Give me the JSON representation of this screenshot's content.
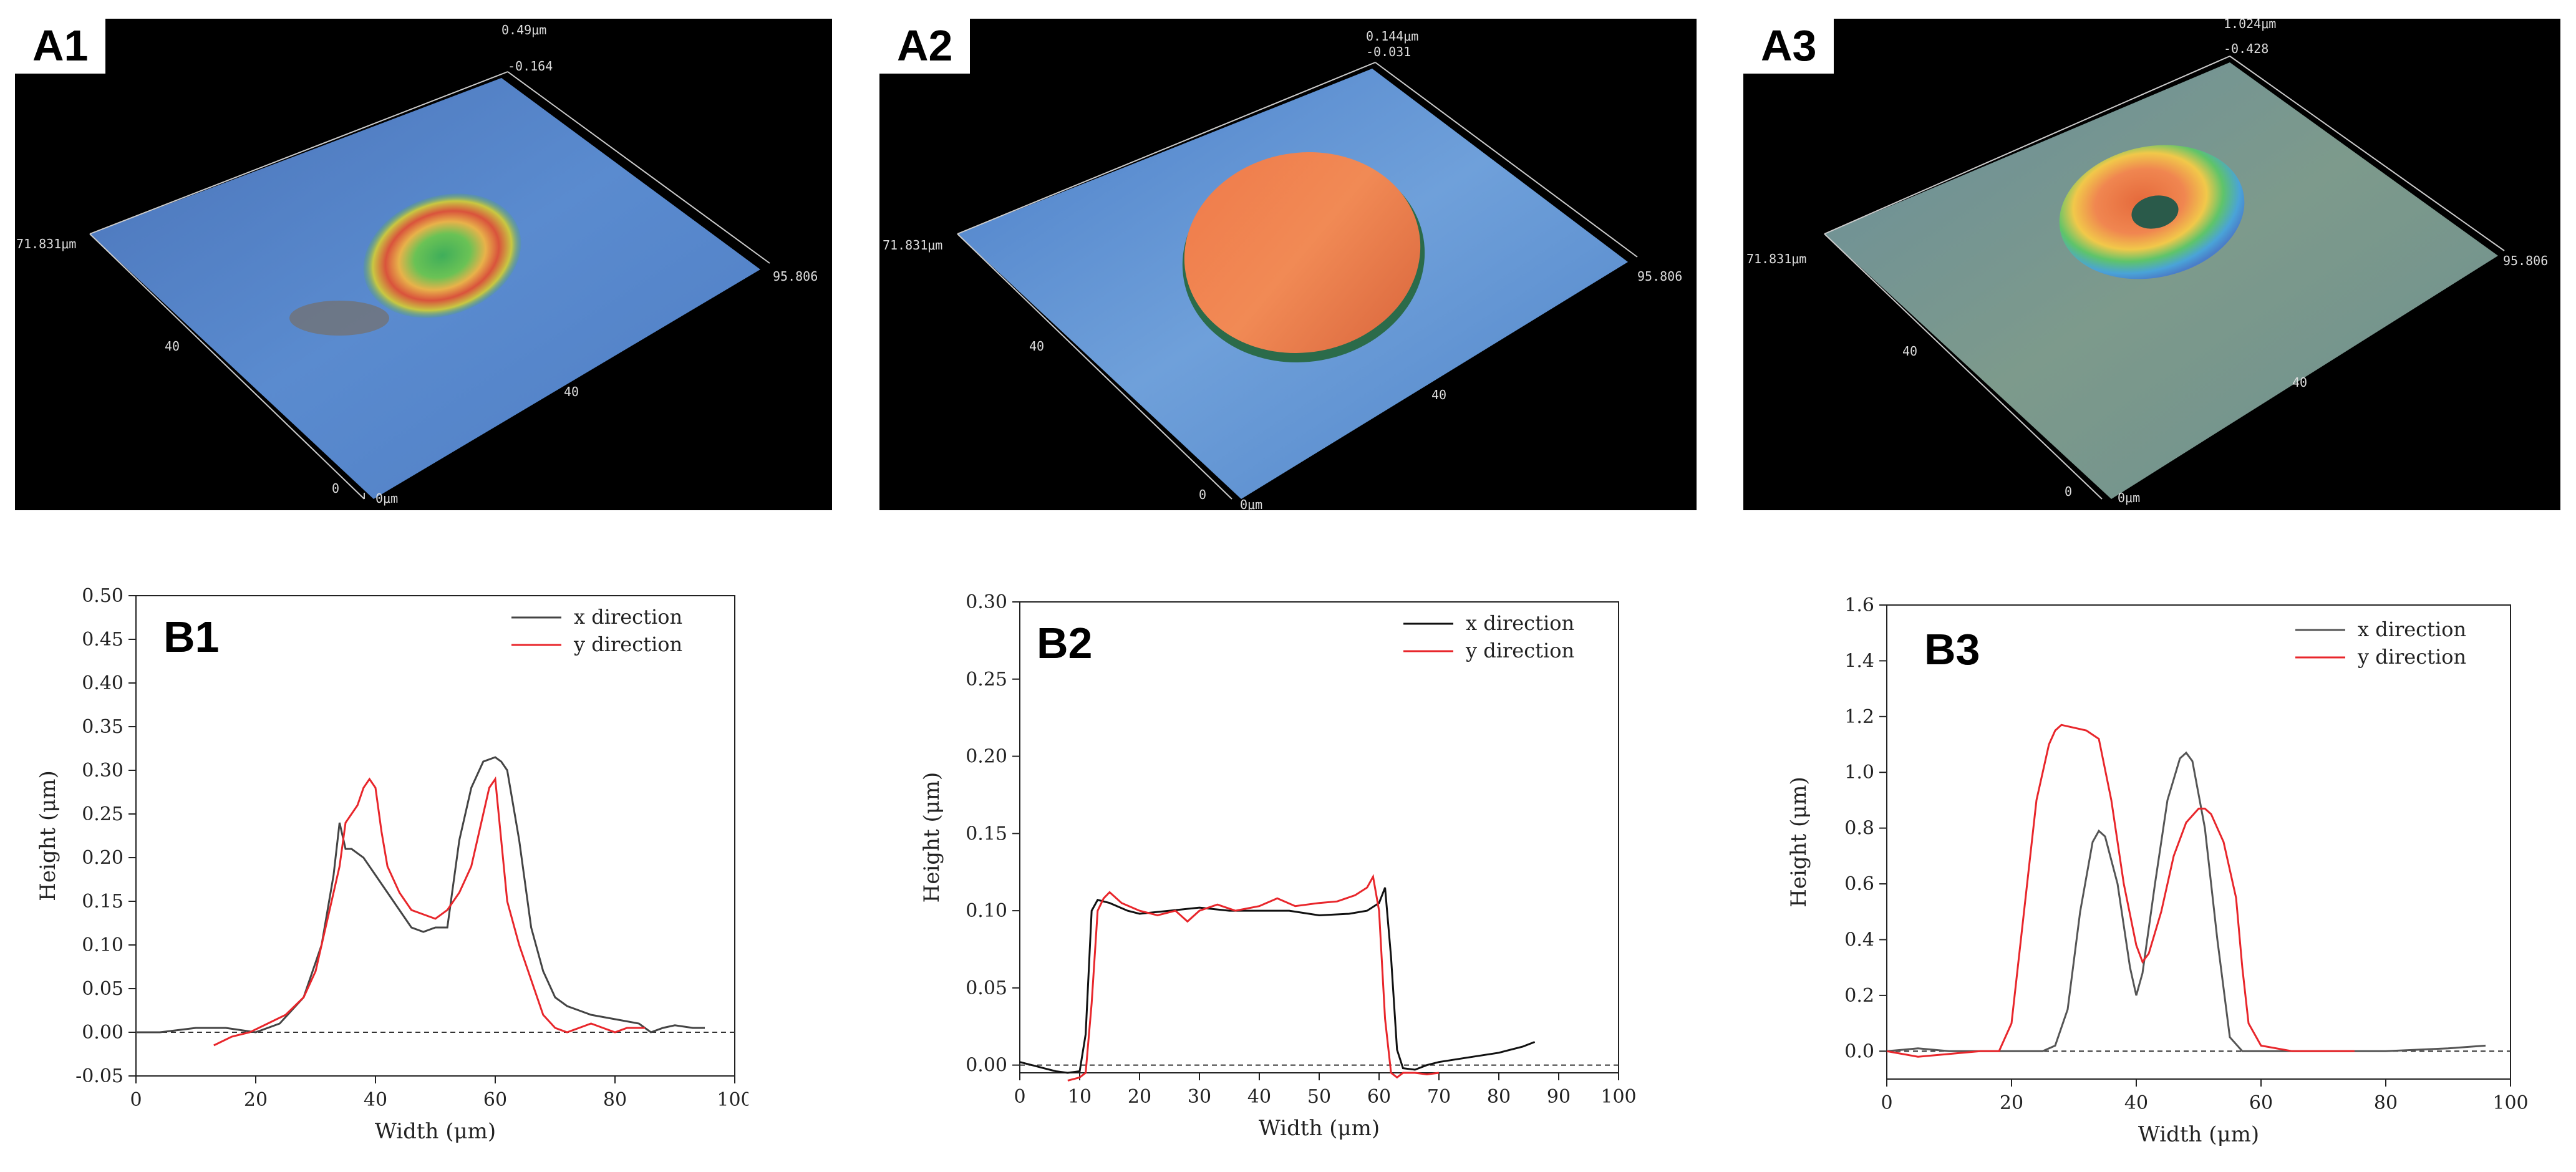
{
  "panels_3d": [
    {
      "label": "A1",
      "scale": {
        "zmax": "0.49μm",
        "zmin": "-0.164",
        "ylen": "71.831μm",
        "xlen": "95.806",
        "tick_a": "40",
        "tick_b": "40",
        "origin_z": "0",
        "origin_xy": "0μm"
      }
    },
    {
      "label": "A2",
      "scale": {
        "zmax": "0.144μm",
        "zmin": "-0.031",
        "ylen": "71.831μm",
        "xlen": "95.806",
        "tick_a": "40",
        "tick_b": "40",
        "origin_z": "0",
        "origin_xy": "0μm"
      }
    },
    {
      "label": "A3",
      "scale": {
        "zmax": "1.024μm",
        "zmin": "-0.428",
        "ylen": "71.831μm",
        "xlen": "95.806",
        "tick_a": "40",
        "tick_b": "40",
        "origin_z": "0",
        "origin_xy": "0μm"
      }
    }
  ],
  "chart_data": [
    {
      "type": "line",
      "label": "B1",
      "xlabel": "Width (μm)",
      "ylabel": "Height (μm)",
      "xlim": [
        0,
        100
      ],
      "ylim": [
        -0.05,
        0.5
      ],
      "xticks": [
        0,
        20,
        40,
        60,
        80,
        100
      ],
      "yticks": [
        -0.05,
        0.0,
        0.05,
        0.1,
        0.15,
        0.2,
        0.25,
        0.3,
        0.35,
        0.4,
        0.45,
        0.5
      ],
      "ytick_labels": [
        "-0.05",
        "0.00",
        "0.05",
        "0.10",
        "0.15",
        "0.20",
        "0.25",
        "0.30",
        "0.35",
        "0.40",
        "0.45",
        "0.50"
      ],
      "xtick_labels": [
        "0",
        "20",
        "40",
        "60",
        "80",
        "100"
      ],
      "baseline": 0,
      "series": [
        {
          "name": "x direction",
          "color": "#444444",
          "x": [
            0,
            4,
            10,
            15,
            20,
            24,
            28,
            31,
            33,
            34,
            35,
            36,
            38,
            40,
            42,
            44,
            46,
            48,
            50,
            52,
            54,
            56,
            58,
            60,
            61,
            62,
            64,
            66,
            68,
            70,
            72,
            74,
            76,
            80,
            84,
            86,
            88,
            90,
            93,
            95
          ],
          "y": [
            0.0,
            0.0,
            0.005,
            0.005,
            0.0,
            0.01,
            0.04,
            0.1,
            0.18,
            0.24,
            0.21,
            0.21,
            0.2,
            0.18,
            0.16,
            0.14,
            0.12,
            0.115,
            0.12,
            0.12,
            0.22,
            0.28,
            0.31,
            0.315,
            0.31,
            0.3,
            0.22,
            0.12,
            0.07,
            0.04,
            0.03,
            0.025,
            0.02,
            0.015,
            0.01,
            0.0,
            0.005,
            0.008,
            0.005,
            0.005
          ]
        },
        {
          "name": "y direction",
          "color": "#e8262b",
          "x": [
            13,
            16,
            19,
            22,
            25,
            28,
            30,
            32,
            34,
            35,
            37,
            38,
            39,
            40,
            41,
            42,
            44,
            46,
            48,
            50,
            52,
            54,
            56,
            58,
            59,
            60,
            61,
            62,
            64,
            66,
            68,
            70,
            72,
            74,
            76,
            78,
            80,
            82,
            85
          ],
          "y": [
            -0.015,
            -0.005,
            0.0,
            0.01,
            0.02,
            0.04,
            0.07,
            0.13,
            0.19,
            0.24,
            0.26,
            0.28,
            0.29,
            0.28,
            0.23,
            0.19,
            0.16,
            0.14,
            0.135,
            0.13,
            0.14,
            0.16,
            0.19,
            0.25,
            0.28,
            0.29,
            0.22,
            0.15,
            0.1,
            0.06,
            0.02,
            0.005,
            0.0,
            0.005,
            0.01,
            0.005,
            0.0,
            0.005,
            0.005
          ]
        }
      ]
    },
    {
      "type": "line",
      "label": "B2",
      "xlabel": "Width (μm)",
      "ylabel": "Height (μm)",
      "xlim": [
        0,
        100
      ],
      "ylim": [
        -0.005,
        0.3
      ],
      "xticks": [
        0,
        10,
        20,
        30,
        40,
        50,
        60,
        70,
        80,
        90,
        100
      ],
      "yticks": [
        0.0,
        0.05,
        0.1,
        0.15,
        0.2,
        0.25,
        0.3
      ],
      "ytick_labels": [
        "0.00",
        "0.05",
        "0.10",
        "0.15",
        "0.20",
        "0.25",
        "0.30"
      ],
      "xtick_labels": [
        "0",
        "10",
        "20",
        "30",
        "40",
        "50",
        "60",
        "70",
        "80",
        "90",
        "100"
      ],
      "baseline": 0,
      "series": [
        {
          "name": "x direction",
          "color": "#111111",
          "x": [
            0,
            2,
            4,
            6,
            8,
            10,
            11,
            12,
            13,
            15,
            18,
            20,
            25,
            30,
            35,
            40,
            45,
            50,
            55,
            58,
            60,
            61,
            62,
            63,
            64,
            66,
            68,
            70,
            75,
            80,
            84,
            86
          ],
          "y": [
            0.002,
            0.0,
            -0.002,
            -0.004,
            -0.005,
            -0.004,
            0.02,
            0.1,
            0.107,
            0.105,
            0.1,
            0.098,
            0.1,
            0.102,
            0.1,
            0.1,
            0.1,
            0.097,
            0.098,
            0.1,
            0.105,
            0.115,
            0.07,
            0.01,
            -0.002,
            -0.003,
            0.0,
            0.002,
            0.005,
            0.008,
            0.012,
            0.015
          ]
        },
        {
          "name": "y direction",
          "color": "#e8262b",
          "x": [
            8,
            10,
            11,
            12,
            13,
            14,
            15,
            17,
            20,
            23,
            26,
            28,
            30,
            33,
            36,
            40,
            43,
            46,
            50,
            53,
            56,
            58,
            59,
            60,
            61,
            62,
            63,
            64,
            66,
            68,
            70
          ],
          "y": [
            -0.01,
            -0.008,
            -0.005,
            0.04,
            0.1,
            0.108,
            0.112,
            0.105,
            0.1,
            0.097,
            0.1,
            0.093,
            0.1,
            0.104,
            0.1,
            0.103,
            0.108,
            0.103,
            0.105,
            0.106,
            0.11,
            0.115,
            0.122,
            0.1,
            0.03,
            -0.005,
            -0.008,
            -0.005,
            -0.005,
            -0.006,
            -0.005
          ]
        }
      ]
    },
    {
      "type": "line",
      "label": "B3",
      "xlabel": "Width (μm)",
      "ylabel": "Height (μm)",
      "xlim": [
        0,
        100
      ],
      "ylim": [
        -0.1,
        1.6
      ],
      "xticks": [
        0,
        20,
        40,
        60,
        80,
        100
      ],
      "yticks": [
        0.0,
        0.2,
        0.4,
        0.6,
        0.8,
        1.0,
        1.2,
        1.4,
        1.6
      ],
      "ytick_labels": [
        "0.0",
        "0.2",
        "0.4",
        "0.6",
        "0.8",
        "1.0",
        "1.2",
        "1.4",
        "1.6"
      ],
      "xtick_labels": [
        "0",
        "20",
        "40",
        "60",
        "80",
        "100"
      ],
      "baseline": 0,
      "series": [
        {
          "name": "x direction",
          "color": "#555555",
          "x": [
            0,
            5,
            10,
            15,
            20,
            25,
            27,
            29,
            31,
            33,
            34,
            35,
            37,
            39,
            40,
            41,
            43,
            45,
            47,
            48,
            49,
            51,
            53,
            55,
            57,
            60,
            65,
            70,
            80,
            90,
            96
          ],
          "y": [
            0.0,
            0.01,
            0.0,
            0.0,
            0.0,
            0.0,
            0.02,
            0.15,
            0.5,
            0.75,
            0.79,
            0.77,
            0.6,
            0.3,
            0.2,
            0.28,
            0.6,
            0.9,
            1.05,
            1.07,
            1.04,
            0.8,
            0.4,
            0.05,
            0.0,
            0.0,
            0.0,
            0.0,
            0.0,
            0.01,
            0.02
          ]
        },
        {
          "name": "y direction",
          "color": "#e8262b",
          "x": [
            0,
            5,
            10,
            15,
            18,
            20,
            22,
            24,
            26,
            27,
            28,
            30,
            32,
            34,
            36,
            38,
            40,
            41,
            42,
            44,
            46,
            48,
            50,
            51,
            52,
            54,
            56,
            57,
            58,
            60,
            65,
            70,
            75
          ],
          "y": [
            0.0,
            -0.02,
            -0.01,
            0.0,
            0.0,
            0.1,
            0.5,
            0.9,
            1.1,
            1.15,
            1.17,
            1.16,
            1.15,
            1.12,
            0.9,
            0.6,
            0.38,
            0.32,
            0.35,
            0.5,
            0.7,
            0.82,
            0.87,
            0.87,
            0.85,
            0.75,
            0.55,
            0.3,
            0.1,
            0.02,
            0.0,
            0.0,
            0.0
          ]
        }
      ]
    }
  ]
}
